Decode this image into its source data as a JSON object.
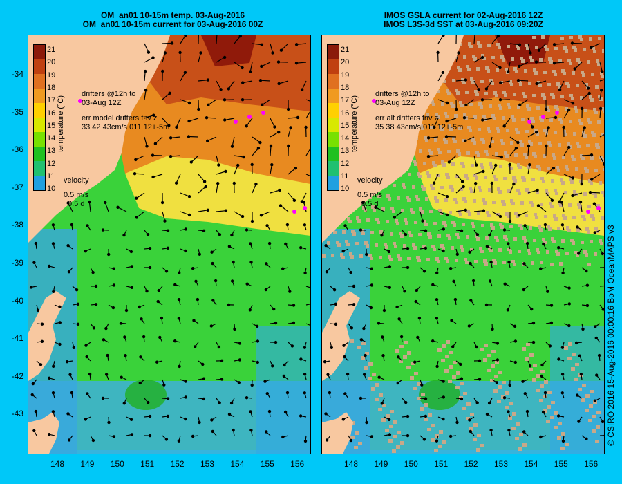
{
  "colors": {
    "background": "#00c8f8",
    "land": "#f8c8a0",
    "drifter": "#ff00ff"
  },
  "colorbar": {
    "title": "temperature (°C)",
    "ticks": [
      "21",
      "20",
      "19",
      "18",
      "17",
      "16",
      "15",
      "14",
      "13",
      "12",
      "11",
      "10"
    ],
    "colors": [
      "#8b1a0a",
      "#c04010",
      "#e07020",
      "#f09a20",
      "#ffd000",
      "#d8e800",
      "#78e000",
      "#20c020",
      "#20c070",
      "#20a0e0",
      "#2050d0",
      "#101080"
    ]
  },
  "y_ticks": [
    "-34",
    "-35",
    "-36",
    "-37",
    "-38",
    "-39",
    "-40",
    "-41",
    "-42",
    "-43"
  ],
  "x_ticks": [
    "148",
    "149",
    "150",
    "151",
    "152",
    "153",
    "154",
    "155",
    "156"
  ],
  "panels": [
    {
      "id": "left",
      "title_line1": "OM_an01 10-15m temp. 03-Aug-2016",
      "title_line2": "OM_an01 10-15m current for 03-Aug-2016 00Z",
      "drifters_line1": "drifters @12h to",
      "drifters_line2": "03-Aug 12Z",
      "err_line1": "err model drifters fnv z",
      "err_line2": "33 42 43cm/s 011 12+-5m",
      "velocity_label": "velocity",
      "velocity_speed": "0.5 m/s",
      "velocity_days": "0.5 d"
    },
    {
      "id": "right",
      "title_line1": "IMOS GSLA current for 02-Aug-2016 12Z",
      "title_line2": "IMOS L3S-3d SST at 03-Aug-2016 09:20Z",
      "drifters_line1": "drifters @12h to",
      "drifters_line2": "03-Aug 12Z",
      "err_line1": "err alt drifters fnv z",
      "err_line2": "35 38 43cm/s 011 12+-5m",
      "velocity_label": "velocity",
      "velocity_speed": "0.5 m/s",
      "velocity_days": "0.5 d"
    }
  ],
  "credit": "© CSIRO 2016  15-Aug-2016 00:00:16 BoM OceanMAPS v3"
}
